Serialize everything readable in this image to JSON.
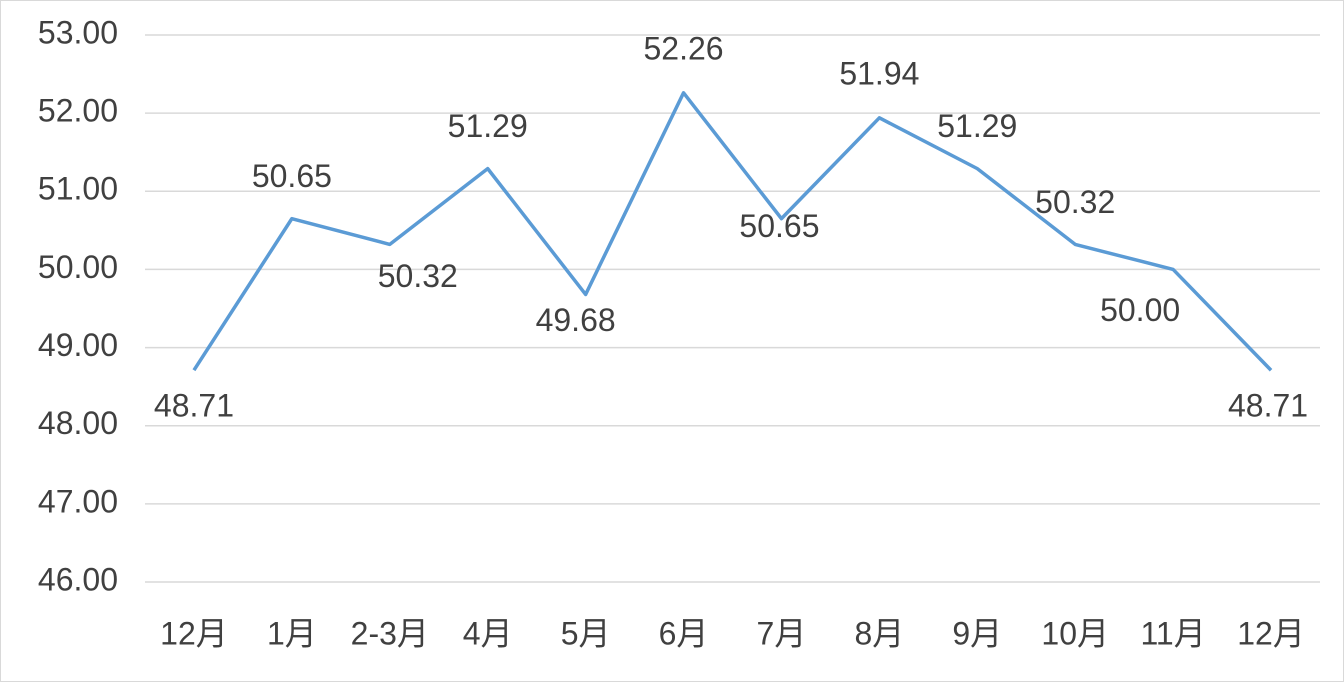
{
  "chart_data": {
    "type": "line",
    "categories": [
      "12月",
      "1月",
      "2-3月",
      "4月",
      "5月",
      "6月",
      "7月",
      "8月",
      "9月",
      "10月",
      "11月",
      "12月"
    ],
    "series": [
      {
        "color": "#5b9bd5",
        "values": [
          48.71,
          50.65,
          50.32,
          51.29,
          49.68,
          52.26,
          50.65,
          51.94,
          51.29,
          50.32,
          50.0,
          48.71
        ],
        "value_labels": [
          "48.71",
          "50.65",
          "50.32",
          "51.29",
          "49.68",
          "52.26",
          "50.65",
          "51.94",
          "51.29",
          "50.32",
          "50.00",
          "48.71"
        ]
      }
    ],
    "ylim": [
      46,
      53
    ],
    "yticks": [
      {
        "value": 46,
        "label": "46.00"
      },
      {
        "value": 47,
        "label": "47.00"
      },
      {
        "value": 48,
        "label": "48.00"
      },
      {
        "value": 49,
        "label": "49.00"
      },
      {
        "value": 50,
        "label": "50.00"
      },
      {
        "value": 51,
        "label": "51.00"
      },
      {
        "value": 52,
        "label": "52.00"
      },
      {
        "value": 53,
        "label": "53.00"
      }
    ],
    "grid": true
  }
}
